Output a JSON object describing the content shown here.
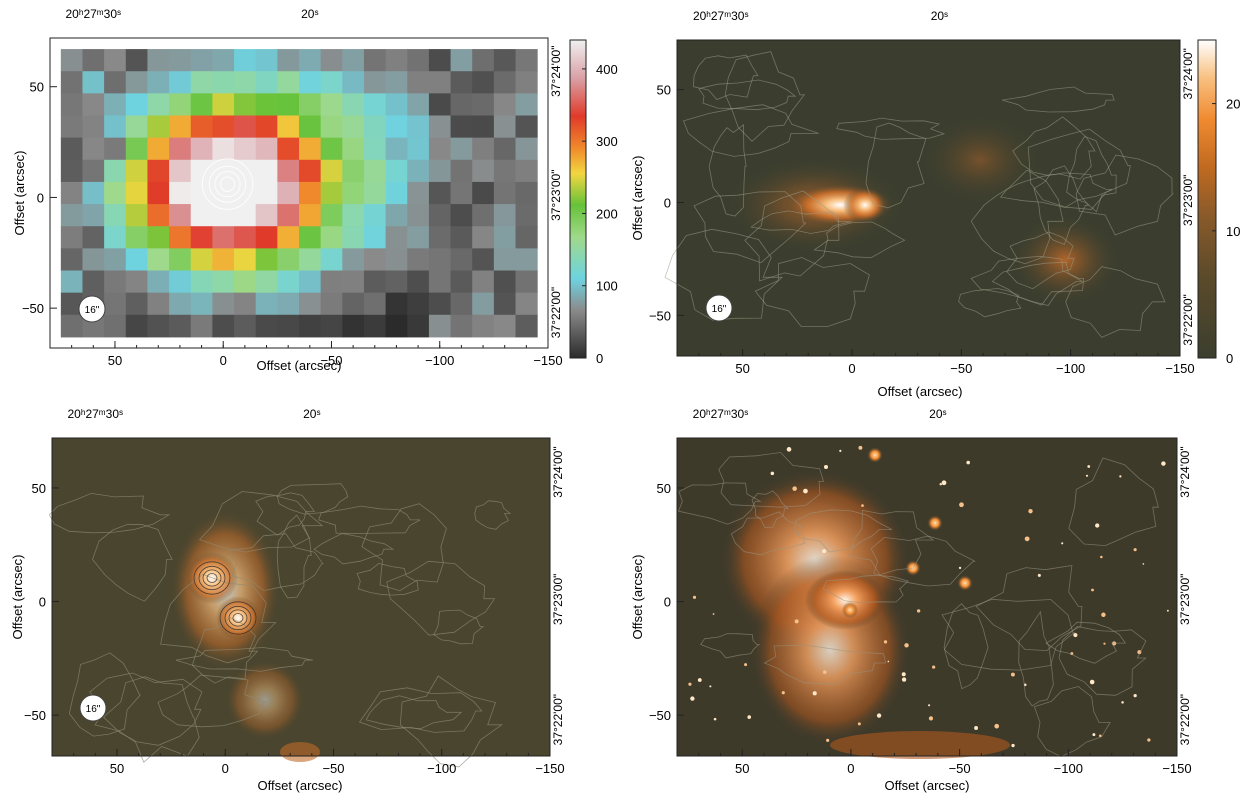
{
  "chart_data": [
    {
      "id": "panel-top-left",
      "type": "heatmap",
      "title": "",
      "xlabel": "Offset (arcsec)",
      "ylabel": "Offset (arcsec)",
      "xlim": [
        80,
        -150
      ],
      "ylim": [
        -68,
        72
      ],
      "x_ticks": [
        {
          "v": 50,
          "label": "50"
        },
        {
          "v": 0,
          "label": "0"
        },
        {
          "v": -50,
          "label": "-50"
        },
        {
          "v": -100,
          "label": "-100"
        },
        {
          "v": -150,
          "label": "-150"
        }
      ],
      "y_ticks": [
        {
          "v": 50,
          "label": "50"
        },
        {
          "v": 0,
          "label": "0"
        },
        {
          "v": -50,
          "label": "-50"
        }
      ],
      "top_axis_labels": [
        {
          "v": 60,
          "label": "20h27m30s"
        },
        {
          "v": -40,
          "label": "20s"
        }
      ],
      "right_axis_labels": [
        {
          "v": 57,
          "label": "37°24'00\""
        },
        {
          "v": 1,
          "label": "37°23'00\""
        },
        {
          "v": -52,
          "label": "37°22'00\""
        }
      ],
      "beam_label": "16\"",
      "colorbar": {
        "min": 0,
        "max": 440,
        "ticks": [
          0,
          100,
          200,
          300,
          400
        ],
        "colors": [
          "#2b2b2b",
          "#8a8a8a",
          "#6ed3e0",
          "#9fd98a",
          "#66c23a",
          "#f2d640",
          "#f08a2c",
          "#e03a2a",
          "#d9a0a6",
          "#f0f0f0"
        ]
      }
    },
    {
      "id": "panel-top-right",
      "type": "heatmap",
      "title": "",
      "xlabel": "Offset (arcsec)",
      "ylabel": "Offset (arcsec)",
      "xlim": [
        80,
        -150
      ],
      "ylim": [
        -68,
        72
      ],
      "x_ticks": [
        {
          "v": 50,
          "label": "50"
        },
        {
          "v": 0,
          "label": "0"
        },
        {
          "v": -50,
          "label": "-50"
        },
        {
          "v": -100,
          "label": "-100"
        },
        {
          "v": -150,
          "label": "-150"
        }
      ],
      "y_ticks": [
        {
          "v": 50,
          "label": "50"
        },
        {
          "v": 0,
          "label": "0"
        },
        {
          "v": -50,
          "label": "-50"
        }
      ],
      "top_axis_labels": [
        {
          "v": 60,
          "label": "20h27m30s"
        },
        {
          "v": -40,
          "label": "20s"
        }
      ],
      "right_axis_labels": [
        {
          "v": 57,
          "label": "37°24'00\""
        },
        {
          "v": 1,
          "label": "37°23'00\""
        },
        {
          "v": -52,
          "label": "37°22'00\""
        }
      ],
      "beam_label": "16\"",
      "colorbar": {
        "min": 0,
        "max": 25,
        "ticks": [
          0,
          10,
          20
        ],
        "colors": [
          "#3b3e2e",
          "#5a4a2a",
          "#8a5a2a",
          "#c06a20",
          "#f08a30",
          "#f8c080",
          "#ffffff"
        ]
      }
    },
    {
      "id": "panel-bottom-left",
      "type": "heatmap",
      "title": "",
      "xlabel": "Offset (arcsec)",
      "ylabel": "Offset (arcsec)",
      "xlim": [
        80,
        -150
      ],
      "ylim": [
        -68,
        72
      ],
      "x_ticks": [
        {
          "v": 50,
          "label": "50"
        },
        {
          "v": 0,
          "label": "0"
        },
        {
          "v": -50,
          "label": "-50"
        },
        {
          "v": -100,
          "label": "-100"
        },
        {
          "v": -150,
          "label": "-150"
        }
      ],
      "y_ticks": [
        {
          "v": 50,
          "label": "50"
        },
        {
          "v": 0,
          "label": "0"
        },
        {
          "v": -50,
          "label": "-50"
        }
      ],
      "top_axis_labels": [
        {
          "v": 60,
          "label": "20h27m30s"
        },
        {
          "v": -40,
          "label": "20s"
        }
      ],
      "right_axis_labels": [
        {
          "v": 57,
          "label": "37°24'00\""
        },
        {
          "v": 1,
          "label": "37°23'00\""
        },
        {
          "v": -52,
          "label": "37°22'00\""
        }
      ],
      "beam_label": "16\""
    },
    {
      "id": "panel-bottom-right",
      "type": "heatmap",
      "title": "",
      "xlabel": "Offset (arcsec)",
      "ylabel": "Offset (arcsec)",
      "xlim": [
        80,
        -150
      ],
      "ylim": [
        -68,
        72
      ],
      "x_ticks": [
        {
          "v": 50,
          "label": "50"
        },
        {
          "v": 0,
          "label": "0"
        },
        {
          "v": -50,
          "label": "-50"
        },
        {
          "v": -100,
          "label": "-100"
        },
        {
          "v": -150,
          "label": "-150"
        }
      ],
      "y_ticks": [
        {
          "v": 50,
          "label": "50"
        },
        {
          "v": 0,
          "label": "0"
        },
        {
          "v": -50,
          "label": "-50"
        }
      ],
      "top_axis_labels": [
        {
          "v": 60,
          "label": "20h27m30s"
        },
        {
          "v": -40,
          "label": "20s"
        }
      ],
      "right_axis_labels": [
        {
          "v": 57,
          "label": "37°24'00\""
        },
        {
          "v": 1,
          "label": "37°23'00\""
        },
        {
          "v": -52,
          "label": "37°22'00\""
        }
      ]
    }
  ]
}
